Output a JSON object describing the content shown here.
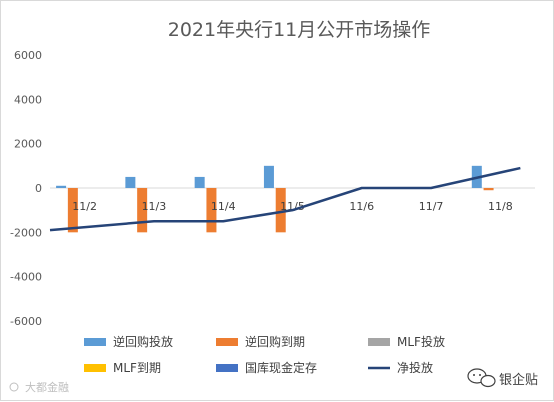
{
  "chart_data": {
    "type": "bar",
    "title": "2021年央行11月公开市场操作",
    "categories": [
      "11/2",
      "11/3",
      "11/4",
      "11/5",
      "11/6",
      "11/7",
      "11/8"
    ],
    "ylim": [
      -6000,
      6000
    ],
    "yticks": [
      6000,
      4000,
      2000,
      0,
      -2000,
      -4000,
      -6000
    ],
    "series": [
      {
        "name": "逆回购投放",
        "type": "bar",
        "color": "#5b9bd5",
        "values": [
          100,
          500,
          500,
          1000,
          0,
          0,
          1000
        ]
      },
      {
        "name": "逆回购到期",
        "type": "bar",
        "color": "#ed7d31",
        "values": [
          -2000,
          -2000,
          -2000,
          -2000,
          0,
          0,
          -100
        ]
      },
      {
        "name": "MLF投放",
        "type": "bar",
        "color": "#a5a5a5",
        "values": [
          0,
          0,
          0,
          0,
          0,
          0,
          0
        ]
      },
      {
        "name": "MLF到期",
        "type": "bar",
        "color": "#ffc000",
        "values": [
          0,
          0,
          0,
          0,
          0,
          0,
          0
        ]
      },
      {
        "name": "国库现金定存",
        "type": "bar",
        "color": "#4472c4",
        "values": [
          0,
          0,
          0,
          0,
          0,
          0,
          0
        ]
      },
      {
        "name": "净投放",
        "type": "line",
        "color": "#264478",
        "values": [
          -1900,
          -1500,
          -1500,
          -1000,
          0,
          0,
          900
        ]
      }
    ],
    "grid": false,
    "legend_position": "bottom"
  },
  "watermark": {
    "text": "大都金融"
  },
  "brand": {
    "text": "银企贴",
    "icon": "chat-bubble-icon"
  }
}
